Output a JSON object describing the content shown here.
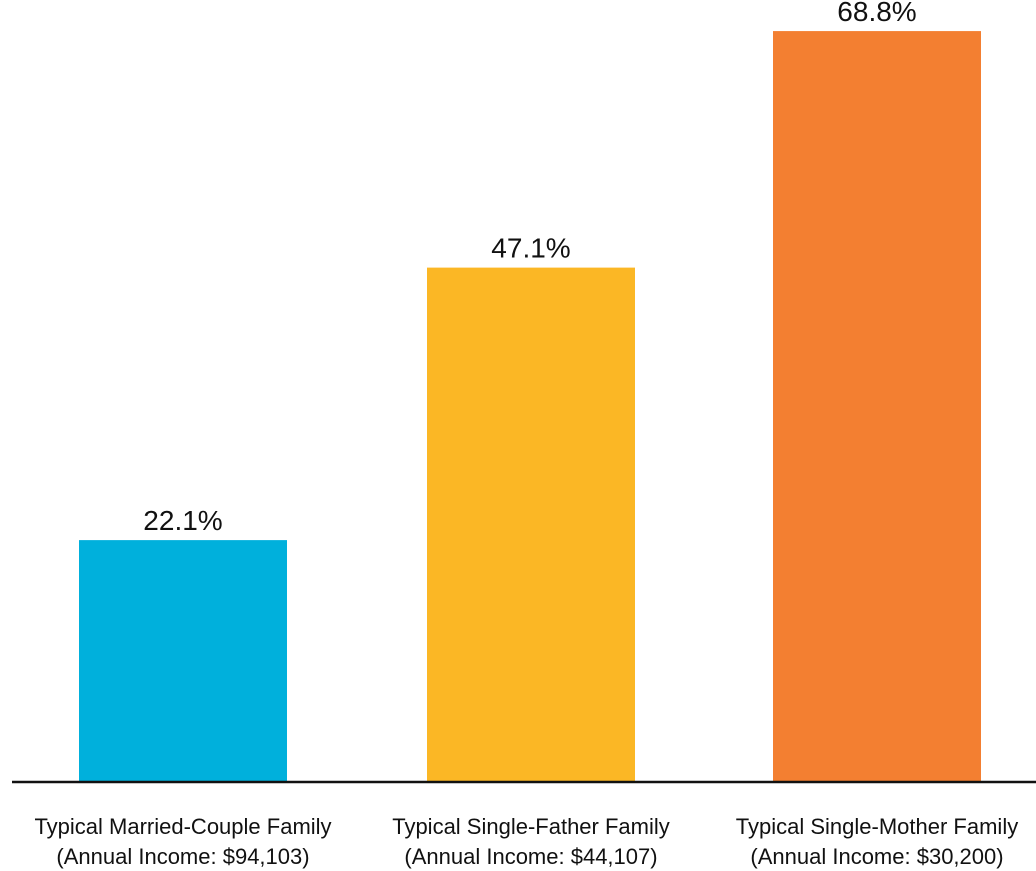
{
  "chart_data": {
    "type": "bar",
    "categories": [
      [
        "Typical Married-Couple Family",
        "(Annual Income: $94,103)"
      ],
      [
        "Typical Single-Father Family",
        "(Annual Income: $44,107)"
      ],
      [
        "Typical Single-Mother Family",
        "(Annual Income: $30,200)"
      ]
    ],
    "values": [
      22.1,
      47.1,
      68.8
    ],
    "value_labels": [
      "22.1%",
      "47.1%",
      "68.8%"
    ],
    "colors": [
      "#00b0dc",
      "#fbb725",
      "#f37f31"
    ],
    "title": "",
    "xlabel": "",
    "ylabel": "",
    "ylim": [
      0,
      75
    ],
    "grid": false,
    "legend": "none"
  }
}
